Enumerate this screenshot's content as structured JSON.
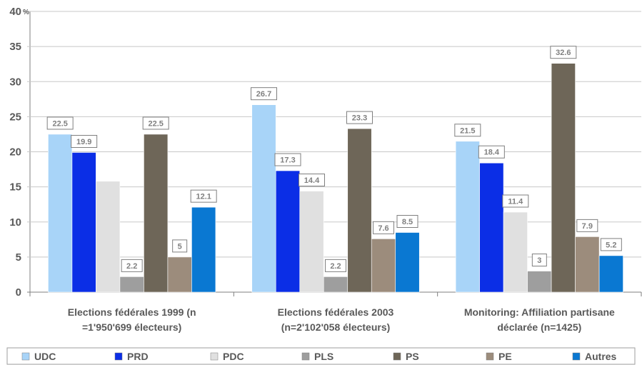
{
  "chart_data": {
    "type": "bar",
    "ylabel": "%",
    "ylim": [
      0,
      40
    ],
    "yticks": [
      0,
      5,
      10,
      15,
      20,
      25,
      30,
      35,
      40
    ],
    "ytick_labels": [
      "0",
      "5",
      "10",
      "15",
      "20",
      "25",
      "30",
      "35",
      "40"
    ],
    "grid": true,
    "legend_position": "bottom",
    "categories": [
      [
        "Elections fédérales 1999 (n",
        "=1'950'699 électeurs)"
      ],
      [
        "Elections fédérales 2003",
        "(n=2'102'058 électeurs)"
      ],
      [
        "Monitoring: Affiliation partisane",
        "déclarée (n=1425)"
      ]
    ],
    "series": [
      {
        "name": "UDC",
        "color": "#a8d4f8",
        "values": [
          22.5,
          26.7,
          21.5
        ],
        "labels": [
          "22.5",
          "26.7",
          "21.5"
        ]
      },
      {
        "name": "PRD",
        "color": "#0b2ee6",
        "values": [
          19.9,
          17.3,
          18.4
        ],
        "labels": [
          "19.9",
          "17.3",
          "18.4"
        ]
      },
      {
        "name": "PDC",
        "color": "#e0e0e0",
        "values": [
          15.8,
          14.4,
          11.4
        ],
        "labels": [
          "",
          "14.4",
          "11.4"
        ]
      },
      {
        "name": "PLS",
        "color": "#9e9e9e",
        "values": [
          2.2,
          2.2,
          3
        ],
        "labels": [
          "2.2",
          "2.2",
          "3"
        ]
      },
      {
        "name": "PS",
        "color": "#6e6658",
        "values": [
          22.5,
          23.3,
          32.6
        ],
        "labels": [
          "22.5",
          "23.3",
          "32.6"
        ]
      },
      {
        "name": "PE",
        "color": "#9c8c7c",
        "values": [
          5,
          7.6,
          7.9
        ],
        "labels": [
          "5",
          "7.6",
          "7.9"
        ]
      },
      {
        "name": "Autres",
        "color": "#0a78d2",
        "values": [
          12.1,
          8.5,
          5.2
        ],
        "labels": [
          "12.1",
          "8.5",
          "5.2"
        ]
      }
    ]
  }
}
